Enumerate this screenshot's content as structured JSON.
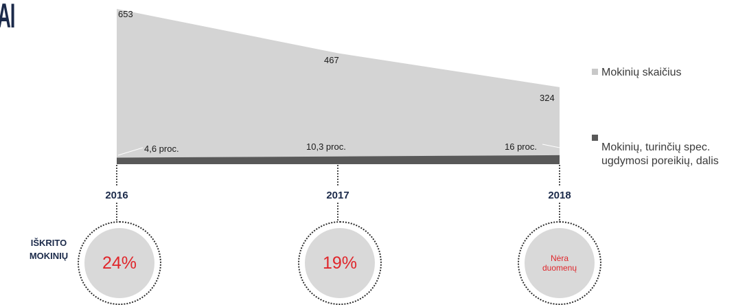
{
  "header": {
    "title_fragment": "AI"
  },
  "chart_data": {
    "type": "area",
    "categories": [
      "2016",
      "2017",
      "2018"
    ],
    "series": [
      {
        "name": "Mokinių skaičius",
        "values": [
          653,
          467,
          324
        ],
        "value_labels": [
          "653",
          "467",
          "324"
        ],
        "color": "#d4d4d4"
      },
      {
        "name": "Mokinių, turinčių spec. ugdymosi poreikių, dalis",
        "values": [
          4.6,
          10.3,
          16
        ],
        "value_labels": [
          "4,6 proc.",
          "10,3 proc.",
          "16 proc."
        ],
        "color": "#595959"
      }
    ],
    "legend_position": "right",
    "grid": false
  },
  "dropped": {
    "label": "IŠKRITO\nMOKINIŲ",
    "values": [
      "24%",
      "19%",
      "Nėra\nduomenų"
    ]
  },
  "colors": {
    "title": "#1b2a4a",
    "accent_red": "#e0262b",
    "area_light": "#d4d4d4",
    "area_dark": "#595959"
  }
}
